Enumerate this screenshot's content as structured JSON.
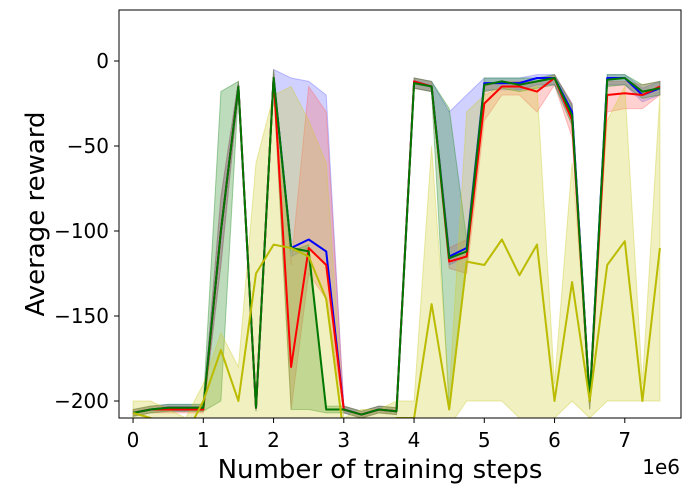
{
  "chart_data": {
    "type": "line",
    "xlabel": "Number of training steps",
    "ylabel": "Average reward",
    "x_offset_label": "1e6",
    "xlim": [
      -0.2,
      7.8
    ],
    "ylim": [
      -210,
      30
    ],
    "xticks": [
      0,
      1,
      2,
      3,
      4,
      5,
      6,
      7
    ],
    "yticks": [
      0,
      -50,
      -100,
      -150,
      -200
    ],
    "xtick_labels": [
      "0",
      "1",
      "2",
      "3",
      "4",
      "5",
      "6",
      "7"
    ],
    "ytick_labels": [
      "0",
      "−50",
      "−100",
      "−150",
      "−200"
    ],
    "grid": false,
    "x": [
      0,
      0.25,
      0.5,
      0.75,
      1.0,
      1.25,
      1.5,
      1.75,
      2.0,
      2.25,
      2.5,
      2.75,
      3.0,
      3.25,
      3.5,
      3.75,
      4.0,
      4.25,
      4.5,
      4.75,
      5.0,
      5.25,
      5.5,
      5.75,
      6.0,
      6.25,
      6.5,
      6.75,
      7.0,
      7.25,
      7.5
    ],
    "series": [
      {
        "color": "#0000ff",
        "fill_color": "#6666ff",
        "values": [
          -207,
          -205,
          -204,
          -204,
          -204,
          -100,
          -15,
          -204,
          -10,
          -110,
          -105,
          -112,
          -205,
          -208,
          -205,
          -206,
          -12,
          -15,
          -115,
          -110,
          -13,
          -13,
          -13,
          -10,
          -10,
          -30,
          -200,
          -10,
          -10,
          -20,
          -16
        ],
        "lower": [
          -209,
          -207,
          -206,
          -206,
          -206,
          -120,
          -18,
          -206,
          -14,
          -115,
          -110,
          -120,
          -207,
          -210,
          -207,
          -208,
          -16,
          -18,
          -120,
          -115,
          -17,
          -17,
          -17,
          -14,
          -14,
          -35,
          -205,
          -14,
          -14,
          -24,
          -20
        ],
        "upper": [
          -205,
          -203,
          -202,
          -202,
          -202,
          -80,
          -12,
          -202,
          -5,
          -10,
          -12,
          -20,
          -203,
          -206,
          -203,
          -204,
          -10,
          -12,
          -30,
          -20,
          -10,
          -10,
          -10,
          -8,
          -8,
          -25,
          -195,
          -8,
          -8,
          -16,
          -12
        ]
      },
      {
        "color": "#ff0000",
        "fill_color": "#ff6666",
        "values": [
          -207,
          -205,
          -205,
          -205,
          -205,
          -100,
          -15,
          -204,
          -10,
          -180,
          -110,
          -120,
          -205,
          -208,
          -205,
          -206,
          -12,
          -15,
          -118,
          -115,
          -25,
          -15,
          -15,
          -18,
          -10,
          -35,
          -200,
          -20,
          -19,
          -20,
          -15
        ],
        "lower": [
          -209,
          -207,
          -207,
          -207,
          -207,
          -120,
          -18,
          -206,
          -14,
          -205,
          -125,
          -140,
          -207,
          -210,
          -207,
          -208,
          -16,
          -18,
          -122,
          -125,
          -35,
          -20,
          -20,
          -30,
          -14,
          -45,
          -205,
          -30,
          -28,
          -28,
          -20
        ],
        "upper": [
          -205,
          -203,
          -203,
          -203,
          -203,
          -80,
          -12,
          -202,
          -5,
          -120,
          -15,
          -30,
          -203,
          -206,
          -203,
          -204,
          -10,
          -12,
          -110,
          -105,
          -15,
          -12,
          -12,
          -12,
          -8,
          -25,
          -195,
          -12,
          -12,
          -14,
          -12
        ]
      },
      {
        "color": "#007700",
        "fill_color": "#228b22",
        "values": [
          -207,
          -205,
          -204,
          -204,
          -204,
          -100,
          -15,
          -204,
          -10,
          -110,
          -112,
          -205,
          -205,
          -208,
          -205,
          -206,
          -13,
          -15,
          -116,
          -112,
          -14,
          -12,
          -14,
          -12,
          -10,
          -32,
          -200,
          -11,
          -10,
          -18,
          -16
        ],
        "lower": [
          -209,
          -207,
          -206,
          -206,
          -206,
          -200,
          -18,
          -206,
          -14,
          -205,
          -205,
          -207,
          -207,
          -210,
          -207,
          -208,
          -16,
          -18,
          -205,
          -120,
          -18,
          -16,
          -18,
          -16,
          -14,
          -38,
          -205,
          -15,
          -14,
          -22,
          -20
        ],
        "upper": [
          -205,
          -203,
          -202,
          -202,
          -202,
          -18,
          -12,
          -202,
          -5,
          -112,
          -108,
          -203,
          -203,
          -206,
          -203,
          -204,
          -10,
          -12,
          -28,
          -105,
          -10,
          -10,
          -10,
          -10,
          -8,
          -26,
          -195,
          -8,
          -8,
          -14,
          -12
        ]
      },
      {
        "color": "#bbbb00",
        "fill_color": "#cccc33",
        "values": [
          -207,
          -210,
          -215,
          -220,
          -200,
          -170,
          -200,
          -125,
          -108,
          -110,
          -115,
          -140,
          -220,
          -215,
          -215,
          -210,
          -210,
          -143,
          -205,
          -118,
          -120,
          -105,
          -126,
          -108,
          -200,
          -130,
          -200,
          -120,
          -106,
          -200,
          -110
        ],
        "lower": [
          -210,
          -210,
          -225,
          -230,
          -210,
          -210,
          -210,
          -210,
          -210,
          -210,
          -210,
          -210,
          -230,
          -225,
          -225,
          -220,
          -220,
          -210,
          -215,
          -200,
          -200,
          -200,
          -210,
          -210,
          -210,
          -200,
          -210,
          -200,
          -200,
          -200,
          -200
        ],
        "upper": [
          -200,
          -200,
          -205,
          -210,
          -190,
          -160,
          -180,
          -60,
          -20,
          -15,
          -35,
          -60,
          -210,
          -205,
          -205,
          -200,
          -200,
          -50,
          -195,
          -30,
          -20,
          -15,
          -18,
          -15,
          -190,
          -60,
          -190,
          -35,
          -15,
          -190,
          -20
        ]
      }
    ]
  }
}
